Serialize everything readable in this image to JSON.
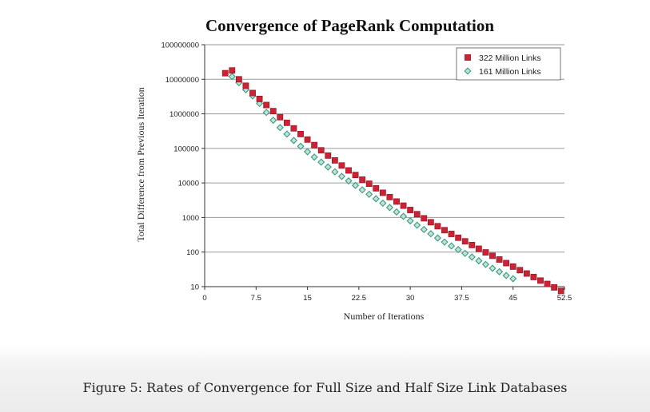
{
  "chart_data": {
    "type": "scatter",
    "title": "Convergence of PageRank Computation",
    "xlabel": "Number of Iterations",
    "ylabel": "Total Difference from Previous Iteration",
    "xlim": [
      0,
      52.5
    ],
    "ylim": [
      10,
      100000000
    ],
    "y_scale": "log",
    "x_ticks": [
      "0",
      "7.5",
      "15",
      "22.5",
      "30",
      "37.5",
      "45",
      "52.5"
    ],
    "y_ticks": [
      "10",
      "100",
      "1000",
      "10000",
      "100000",
      "1000000",
      "10000000",
      "100000000"
    ],
    "grid": "horizontal",
    "legend_position": "top-right",
    "series": [
      {
        "name": "322 Million Links",
        "color": "#cc2233",
        "marker": "square",
        "x": [
          3,
          4,
          5,
          6,
          7,
          8,
          9,
          10,
          11,
          12,
          13,
          14,
          15,
          16,
          17,
          18,
          19,
          20,
          21,
          22,
          23,
          24,
          25,
          26,
          27,
          28,
          29,
          30,
          31,
          32,
          33,
          34,
          35,
          36,
          37,
          38,
          39,
          40,
          41,
          42,
          43,
          44,
          45,
          46,
          47,
          48,
          49,
          50,
          51,
          52
        ],
        "y": [
          15000000,
          18000000,
          10000000,
          6500000,
          4000000,
          2700000,
          1800000,
          1200000,
          800000,
          550000,
          380000,
          260000,
          180000,
          125000,
          88000,
          62000,
          45000,
          32000,
          23000,
          17000,
          12500,
          9500,
          7000,
          5200,
          3900,
          2900,
          2200,
          1650,
          1250,
          950,
          730,
          560,
          430,
          335,
          260,
          205,
          160,
          125,
          98,
          78,
          61,
          48,
          38,
          30,
          24,
          19,
          15,
          12,
          9.5,
          7.5
        ]
      },
      {
        "name": "161 Million Links",
        "color": "#3a9a80",
        "marker": "diamond",
        "x": [
          4,
          5,
          6,
          7,
          8,
          9,
          10,
          11,
          12,
          13,
          14,
          15,
          16,
          17,
          18,
          19,
          20,
          21,
          22,
          23,
          24,
          25,
          26,
          27,
          28,
          29,
          30,
          31,
          32,
          33,
          34,
          35,
          36,
          37,
          38,
          39,
          40,
          41,
          42,
          43,
          44,
          45
        ],
        "y": [
          12000000,
          8000000,
          5000000,
          3300000,
          2000000,
          1100000,
          650000,
          400000,
          260000,
          170000,
          115000,
          80000,
          56000,
          40000,
          29000,
          21000,
          15500,
          11500,
          8500,
          6300,
          4700,
          3500,
          2600,
          1950,
          1450,
          1080,
          800,
          600,
          450,
          340,
          255,
          195,
          150,
          118,
          92,
          72,
          56,
          44,
          34,
          27,
          21,
          17
        ]
      }
    ]
  },
  "caption": "Figure 5: Rates of Convergence for Full Size and Half Size Link Databases"
}
